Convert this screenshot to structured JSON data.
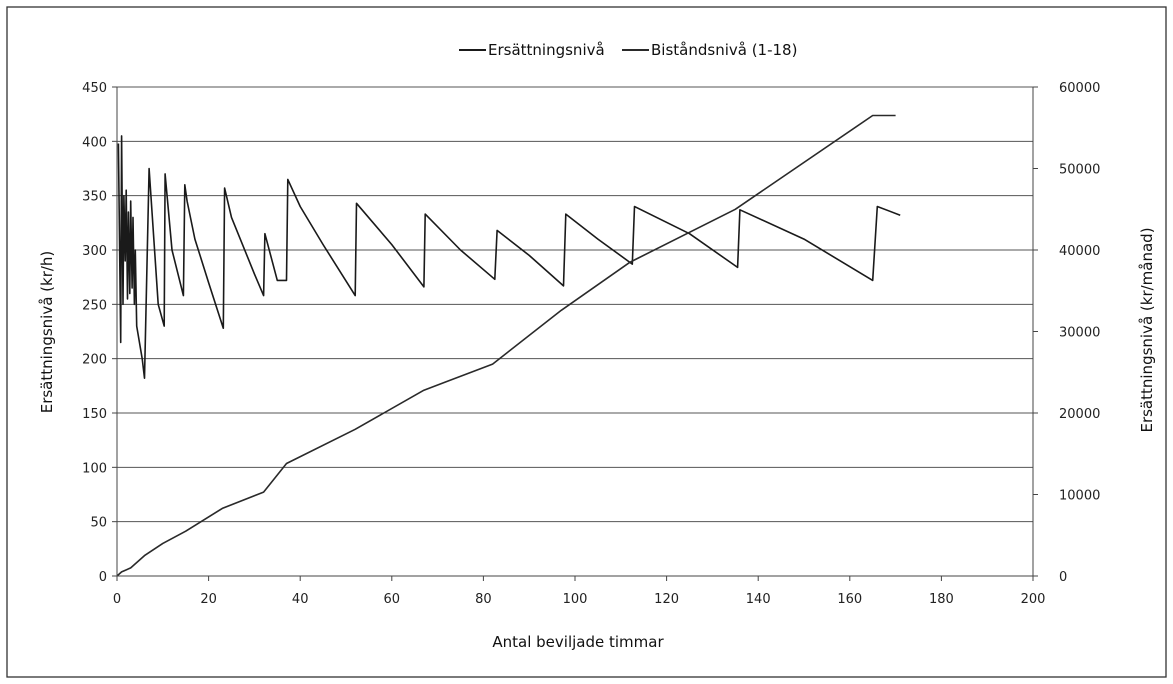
{
  "chart_data": {
    "type": "line",
    "legend": {
      "placement": "top",
      "entries": [
        "Ersättningsnivå",
        "Biståndsnivå (1-18)"
      ]
    },
    "xlabel": "Antal beviljade timmar",
    "ylabel": "Ersättningsnivå (kr/h)",
    "y2label": "Ersättningsnivå (kr/månad)",
    "xlim": [
      0,
      200
    ],
    "ylim": [
      0,
      450
    ],
    "y2lim": [
      0,
      60000
    ],
    "x_ticks": [
      "0",
      "20",
      "40",
      "60",
      "80",
      "100",
      "120",
      "140",
      "160",
      "180",
      "200"
    ],
    "y_ticks": [
      "0",
      "50",
      "100",
      "150",
      "200",
      "250",
      "300",
      "350",
      "400",
      "450"
    ],
    "y2_ticks": [
      "0",
      "10000",
      "20000",
      "30000",
      "40000",
      "50000",
      "60000"
    ],
    "grid": "horizontal",
    "series": [
      {
        "name": "Ersättningsnivå",
        "axis": "left",
        "color": "#1a1a1a",
        "x": [
          0.3,
          0.8,
          1.0,
          1.3,
          1.5,
          1.8,
          2.0,
          2.3,
          2.5,
          2.8,
          3.0,
          3.3,
          3.5,
          3.8,
          4.0,
          4.3,
          5.5,
          6.0,
          7.0,
          9.0,
          10.3,
          10.5,
          12.0,
          14.5,
          14.8,
          15.3,
          17.0,
          20.0,
          23.2,
          23.5,
          25.0,
          30.0,
          32.0,
          32.3,
          35.0,
          37.0,
          37.3,
          40.0,
          45.0,
          52.0,
          52.3,
          60.0,
          67.0,
          67.3,
          75.0,
          82.5,
          83.0,
          90.0,
          97.5,
          98.0,
          105.0,
          112.5,
          113.0,
          125.0,
          135.5,
          136.0,
          150.0,
          165.0,
          166.0,
          171.0
        ],
        "y": [
          398,
          215,
          405,
          250,
          350,
          290,
          355,
          255,
          335,
          260,
          345,
          265,
          330,
          250,
          300,
          230,
          200,
          182,
          375,
          250,
          230,
          370,
          300,
          258,
          360,
          345,
          310,
          270,
          228,
          357,
          330,
          278,
          258,
          315,
          272,
          272,
          365,
          340,
          305,
          258,
          343,
          305,
          266,
          333,
          300,
          273,
          318,
          295,
          267,
          333,
          310,
          287,
          340,
          315,
          284,
          337,
          310,
          272,
          340,
          332
        ]
      },
      {
        "name": "Biståndsnivå (1-18)",
        "axis": "right",
        "color": "#2a2a2a",
        "x": [
          0,
          1,
          1,
          3,
          3,
          6,
          6,
          10,
          10,
          15,
          15,
          23,
          23,
          32,
          32,
          37,
          37,
          52,
          52,
          67,
          67,
          82,
          82,
          97,
          97,
          112,
          112,
          135,
          135,
          165,
          165,
          170
        ],
        "y": [
          0,
          500,
          500,
          1000,
          1000,
          2500,
          2500,
          4000,
          4000,
          5500,
          5500,
          8300,
          8300,
          10300,
          10300,
          13800,
          13800,
          18000,
          18000,
          22800,
          22800,
          26000,
          26000,
          32600,
          32600,
          38500,
          38500,
          45000,
          45000,
          56500,
          56500,
          56500
        ]
      }
    ]
  }
}
